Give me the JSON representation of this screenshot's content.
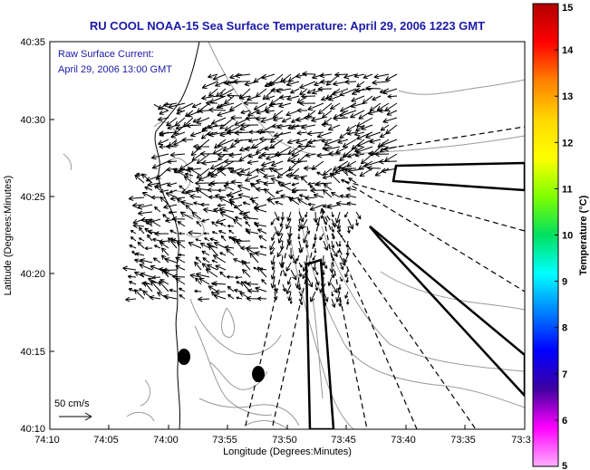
{
  "title": "RU COOL  NOAA-15  Sea Surface Temperature:  April 29, 2006 1223 GMT",
  "annotation": {
    "line1": "Raw Surface Current:",
    "line2": "April 29, 2006 13:00 GMT"
  },
  "scale_label": "50 cm/s",
  "x_axis": {
    "label": "Longitude (Degrees:Minutes)",
    "ticks": [
      "74:10",
      "74:05",
      "74:00",
      "73:55",
      "73:50",
      "73:45",
      "73:40",
      "73:35",
      "73:3"
    ]
  },
  "y_axis": {
    "label": "Latitude (Degrees:Minutes)",
    "ticks": [
      "40:35",
      "40:30",
      "40:25",
      "40:20",
      "40:15",
      "40:10"
    ]
  },
  "colorbar": {
    "label": "Temperature (°C)",
    "ticks": [
      "15",
      "14",
      "13",
      "12",
      "11",
      "10",
      "9",
      "8",
      "7",
      "6",
      "5"
    ],
    "colors": [
      "#b00000",
      "#ff0000",
      "#ff8000",
      "#ffd700",
      "#ffff00",
      "#80ff00",
      "#00e060",
      "#00ffff",
      "#0080ff",
      "#0000ff",
      "#4000a0",
      "#ff00ff",
      "#ffb0ff"
    ]
  },
  "map": {
    "vector_color": "#000000",
    "contour_color": "#999999",
    "coast_color": "#000000"
  }
}
